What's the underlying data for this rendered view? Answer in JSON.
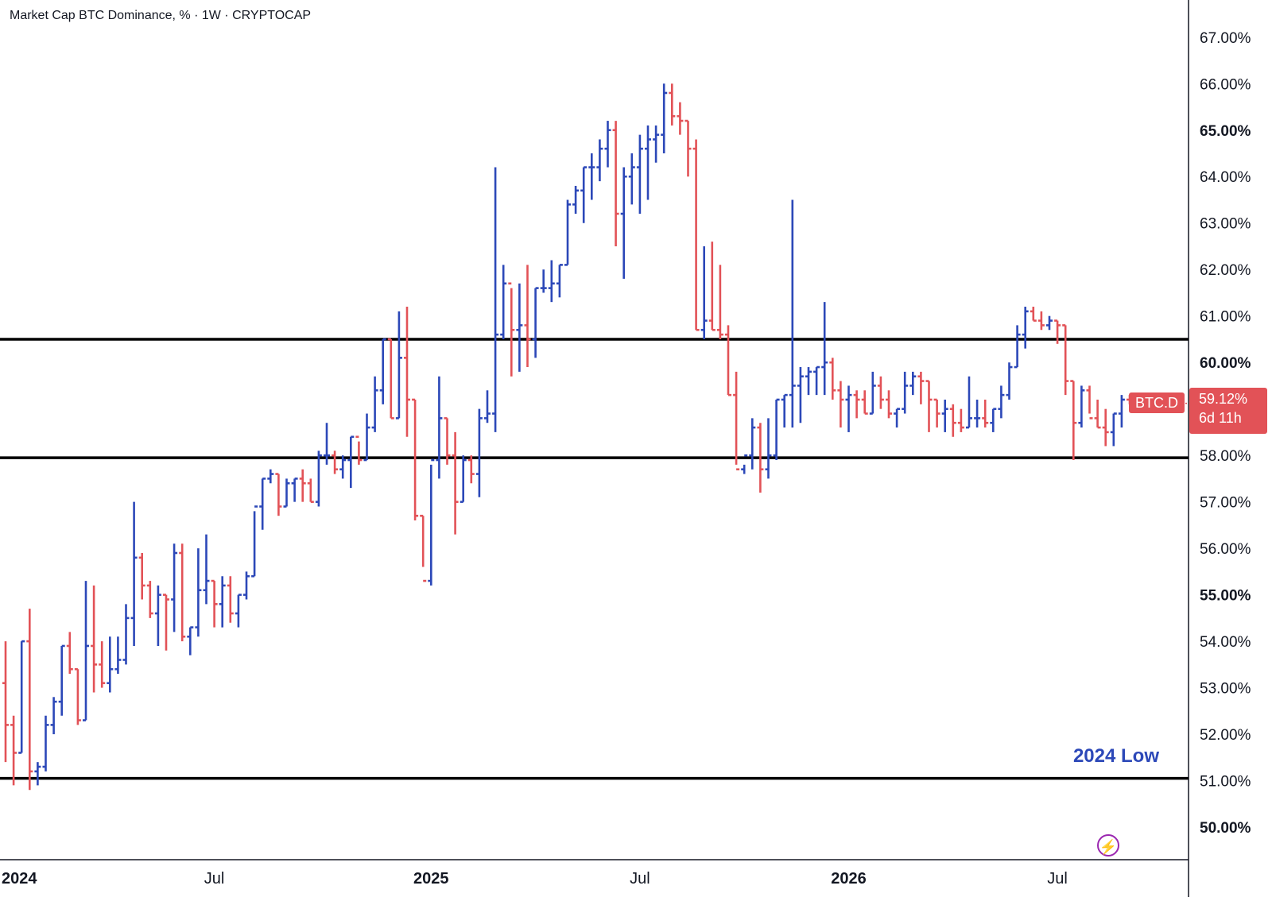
{
  "title": "Market Cap BTC Dominance, % · 1W · CRYPTOCAP",
  "annotation": "2024 Low",
  "last_price": {
    "symbol": "BTC.D",
    "value": "59.12%",
    "countdown": "6d 11h"
  },
  "colors": {
    "up": "#2c48b8",
    "down": "#e25257",
    "level_line": "#000000",
    "axis_text": "#131722"
  },
  "icons": {
    "bolt": "lightning-bolt-icon"
  },
  "chart_data": {
    "type": "ohlc",
    "timeframe": "1W",
    "ylim": [
      49.3,
      67.8
    ],
    "y_ticks": [
      {
        "value": 67,
        "label": "67.00%",
        "bold": false
      },
      {
        "value": 66,
        "label": "66.00%",
        "bold": false
      },
      {
        "value": 65,
        "label": "65.00%",
        "bold": true
      },
      {
        "value": 64,
        "label": "64.00%",
        "bold": false
      },
      {
        "value": 63,
        "label": "63.00%",
        "bold": false
      },
      {
        "value": 62,
        "label": "62.00%",
        "bold": false
      },
      {
        "value": 61,
        "label": "61.00%",
        "bold": false
      },
      {
        "value": 60,
        "label": "60.00%",
        "bold": true
      },
      {
        "value": 58,
        "label": "58.00%",
        "bold": false
      },
      {
        "value": 57,
        "label": "57.00%",
        "bold": false
      },
      {
        "value": 56,
        "label": "56.00%",
        "bold": false
      },
      {
        "value": 55,
        "label": "55.00%",
        "bold": true
      },
      {
        "value": 54,
        "label": "54.00%",
        "bold": false
      },
      {
        "value": 53,
        "label": "53.00%",
        "bold": false
      },
      {
        "value": 52,
        "label": "52.00%",
        "bold": false
      },
      {
        "value": 51,
        "label": "51.00%",
        "bold": false
      },
      {
        "value": 50,
        "label": "50.00%",
        "bold": true
      }
    ],
    "x_ticks": [
      {
        "week": 0,
        "label": "2024",
        "bold": true
      },
      {
        "week": 26,
        "label": "Jul",
        "bold": false
      },
      {
        "week": 53,
        "label": "2025",
        "bold": true
      },
      {
        "week": 79,
        "label": "Jul",
        "bold": false
      },
      {
        "week": 105,
        "label": "2026",
        "bold": true
      },
      {
        "week": 131,
        "label": "Jul",
        "bold": false
      }
    ],
    "horizontal_levels": [
      60.5,
      57.95,
      51.05
    ],
    "last_value": 59.12,
    "bars": [
      [
        53.1,
        54.0,
        51.4,
        52.2
      ],
      [
        52.2,
        52.4,
        50.9,
        51.6
      ],
      [
        51.6,
        54.0,
        51.6,
        54.0
      ],
      [
        54.0,
        54.7,
        50.8,
        51.2
      ],
      [
        51.2,
        51.4,
        50.9,
        51.3
      ],
      [
        51.3,
        52.4,
        51.2,
        52.2
      ],
      [
        52.2,
        52.8,
        52.0,
        52.7
      ],
      [
        52.7,
        53.9,
        52.4,
        53.9
      ],
      [
        53.9,
        54.2,
        53.3,
        53.4
      ],
      [
        53.4,
        53.4,
        52.2,
        52.3
      ],
      [
        52.3,
        55.3,
        52.3,
        53.9
      ],
      [
        53.9,
        55.2,
        52.9,
        53.5
      ],
      [
        53.5,
        54.0,
        53.0,
        53.1
      ],
      [
        53.1,
        54.1,
        52.9,
        53.4
      ],
      [
        53.4,
        54.1,
        53.3,
        53.6
      ],
      [
        53.6,
        54.8,
        53.5,
        54.5
      ],
      [
        54.5,
        57.0,
        53.9,
        55.8
      ],
      [
        55.8,
        55.9,
        54.9,
        55.2
      ],
      [
        55.2,
        55.3,
        54.5,
        54.6
      ],
      [
        54.6,
        55.2,
        53.9,
        55.0
      ],
      [
        55.0,
        55.0,
        53.8,
        54.9
      ],
      [
        54.9,
        56.1,
        54.2,
        55.9
      ],
      [
        55.9,
        56.1,
        54.0,
        54.1
      ],
      [
        54.1,
        54.3,
        53.7,
        54.3
      ],
      [
        54.3,
        56.0,
        54.1,
        55.1
      ],
      [
        55.1,
        56.3,
        54.8,
        55.3
      ],
      [
        55.3,
        55.3,
        54.3,
        54.8
      ],
      [
        54.8,
        55.4,
        54.3,
        55.2
      ],
      [
        55.2,
        55.4,
        54.4,
        54.6
      ],
      [
        54.6,
        55.0,
        54.3,
        55.0
      ],
      [
        55.0,
        55.5,
        54.9,
        55.4
      ],
      [
        55.4,
        56.8,
        55.4,
        56.9
      ],
      [
        56.9,
        57.5,
        56.4,
        57.5
      ],
      [
        57.5,
        57.7,
        57.4,
        57.6
      ],
      [
        57.6,
        57.6,
        56.7,
        56.9
      ],
      [
        56.9,
        57.5,
        56.9,
        57.4
      ],
      [
        57.4,
        57.5,
        57.0,
        57.5
      ],
      [
        57.5,
        57.7,
        57.0,
        57.4
      ],
      [
        57.4,
        57.5,
        57.0,
        57.0
      ],
      [
        57.0,
        58.1,
        56.9,
        58.0
      ],
      [
        58.0,
        58.7,
        57.8,
        58.0
      ],
      [
        58.0,
        58.1,
        57.6,
        57.7
      ],
      [
        57.7,
        58.0,
        57.5,
        57.9
      ],
      [
        57.9,
        58.4,
        57.3,
        58.4
      ],
      [
        58.4,
        58.3,
        57.8,
        57.9
      ],
      [
        57.9,
        58.9,
        57.9,
        58.6
      ],
      [
        58.6,
        59.7,
        58.5,
        59.4
      ],
      [
        59.4,
        60.5,
        59.1,
        60.5
      ],
      [
        60.5,
        60.5,
        58.8,
        58.8
      ],
      [
        58.8,
        61.1,
        58.8,
        60.1
      ],
      [
        60.1,
        61.2,
        58.4,
        59.2
      ],
      [
        59.2,
        59.2,
        56.6,
        56.7
      ],
      [
        56.7,
        56.7,
        55.6,
        55.3
      ],
      [
        55.3,
        57.8,
        55.2,
        57.9
      ],
      [
        57.9,
        59.7,
        57.5,
        58.8
      ],
      [
        58.8,
        58.8,
        57.8,
        58.0
      ],
      [
        58.0,
        58.5,
        56.3,
        57.0
      ],
      [
        57.0,
        58.0,
        57.0,
        57.9
      ],
      [
        57.9,
        58.0,
        57.4,
        57.6
      ],
      [
        57.6,
        59.0,
        57.1,
        58.8
      ],
      [
        58.8,
        59.4,
        58.7,
        58.9
      ],
      [
        58.9,
        64.2,
        58.5,
        60.6
      ],
      [
        60.6,
        62.1,
        60.5,
        61.7
      ],
      [
        61.7,
        61.6,
        59.7,
        60.7
      ],
      [
        60.7,
        61.7,
        59.8,
        60.8
      ],
      [
        60.8,
        62.1,
        59.9,
        60.5
      ],
      [
        60.5,
        61.6,
        60.1,
        61.6
      ],
      [
        61.6,
        62.0,
        61.5,
        61.6
      ],
      [
        61.6,
        62.2,
        61.3,
        61.7
      ],
      [
        61.7,
        62.1,
        61.4,
        62.1
      ],
      [
        62.1,
        63.5,
        62.1,
        63.4
      ],
      [
        63.4,
        63.8,
        63.2,
        63.7
      ],
      [
        63.7,
        64.2,
        63.0,
        64.2
      ],
      [
        64.2,
        64.5,
        63.5,
        64.2
      ],
      [
        64.2,
        64.8,
        63.9,
        64.6
      ],
      [
        64.6,
        65.2,
        64.2,
        65.0
      ],
      [
        65.0,
        65.2,
        62.5,
        63.2
      ],
      [
        63.2,
        64.2,
        61.8,
        64.0
      ],
      [
        64.0,
        64.5,
        63.4,
        64.2
      ],
      [
        64.2,
        64.9,
        63.2,
        64.6
      ],
      [
        64.6,
        65.1,
        63.5,
        64.8
      ],
      [
        64.8,
        65.1,
        64.3,
        64.9
      ],
      [
        64.9,
        66.0,
        64.5,
        65.8
      ],
      [
        65.8,
        66.0,
        65.1,
        65.3
      ],
      [
        65.3,
        65.6,
        64.9,
        65.2
      ],
      [
        65.2,
        65.2,
        64.0,
        64.6
      ],
      [
        64.6,
        64.8,
        60.7,
        60.7
      ],
      [
        60.7,
        62.5,
        60.5,
        60.9
      ],
      [
        60.9,
        62.6,
        60.7,
        60.7
      ],
      [
        60.7,
        62.1,
        60.5,
        60.6
      ],
      [
        60.6,
        60.8,
        59.3,
        59.3
      ],
      [
        59.3,
        59.8,
        57.8,
        57.7
      ],
      [
        57.7,
        57.8,
        57.6,
        58.0
      ],
      [
        58.0,
        58.8,
        57.7,
        58.6
      ],
      [
        58.6,
        58.7,
        57.2,
        57.7
      ],
      [
        57.7,
        58.8,
        57.5,
        58.0
      ],
      [
        58.0,
        59.2,
        57.9,
        59.2
      ],
      [
        59.2,
        59.3,
        58.6,
        59.3
      ],
      [
        59.3,
        63.5,
        58.6,
        59.5
      ],
      [
        59.5,
        59.9,
        58.7,
        59.7
      ],
      [
        59.7,
        59.9,
        59.3,
        59.8
      ],
      [
        59.8,
        59.9,
        59.3,
        59.9
      ],
      [
        59.9,
        61.3,
        59.3,
        60.0
      ],
      [
        60.0,
        60.1,
        59.2,
        59.4
      ],
      [
        59.4,
        59.6,
        58.6,
        59.2
      ],
      [
        59.2,
        59.5,
        58.5,
        59.3
      ],
      [
        59.3,
        59.4,
        58.8,
        59.2
      ],
      [
        59.2,
        59.4,
        58.9,
        58.9
      ],
      [
        58.9,
        59.8,
        58.9,
        59.5
      ],
      [
        59.5,
        59.7,
        59.0,
        59.2
      ],
      [
        59.2,
        59.4,
        58.8,
        58.9
      ],
      [
        58.9,
        59.0,
        58.6,
        59.0
      ],
      [
        59.0,
        59.8,
        58.9,
        59.5
      ],
      [
        59.5,
        59.8,
        59.3,
        59.7
      ],
      [
        59.7,
        59.8,
        59.1,
        59.6
      ],
      [
        59.6,
        59.6,
        58.5,
        59.2
      ],
      [
        59.2,
        59.2,
        58.6,
        58.9
      ],
      [
        58.9,
        59.2,
        58.5,
        59.0
      ],
      [
        59.0,
        59.1,
        58.4,
        58.7
      ],
      [
        58.7,
        59.0,
        58.5,
        58.6
      ],
      [
        58.6,
        59.7,
        58.6,
        58.8
      ],
      [
        58.8,
        59.2,
        58.6,
        58.8
      ],
      [
        58.8,
        59.2,
        58.6,
        58.7
      ],
      [
        58.7,
        59.0,
        58.5,
        59.0
      ],
      [
        59.0,
        59.5,
        58.8,
        59.3
      ],
      [
        59.3,
        60.0,
        59.2,
        59.9
      ],
      [
        59.9,
        60.8,
        59.9,
        60.6
      ],
      [
        60.6,
        61.2,
        60.3,
        61.1
      ],
      [
        61.1,
        61.2,
        60.9,
        60.9
      ],
      [
        60.9,
        61.1,
        60.7,
        60.8
      ],
      [
        60.8,
        61.0,
        60.7,
        60.9
      ],
      [
        60.9,
        60.9,
        60.4,
        60.8
      ],
      [
        60.8,
        60.8,
        59.3,
        59.6
      ],
      [
        59.6,
        59.6,
        57.9,
        58.7
      ],
      [
        58.7,
        59.5,
        58.6,
        59.4
      ],
      [
        59.4,
        59.5,
        58.9,
        58.8
      ],
      [
        58.8,
        59.2,
        58.6,
        58.6
      ],
      [
        58.6,
        59.0,
        58.2,
        58.5
      ],
      [
        58.5,
        58.9,
        58.2,
        58.9
      ],
      [
        58.9,
        59.3,
        58.6,
        59.2
      ],
      [
        59.2,
        59.3,
        59.1,
        59.12
      ]
    ]
  }
}
